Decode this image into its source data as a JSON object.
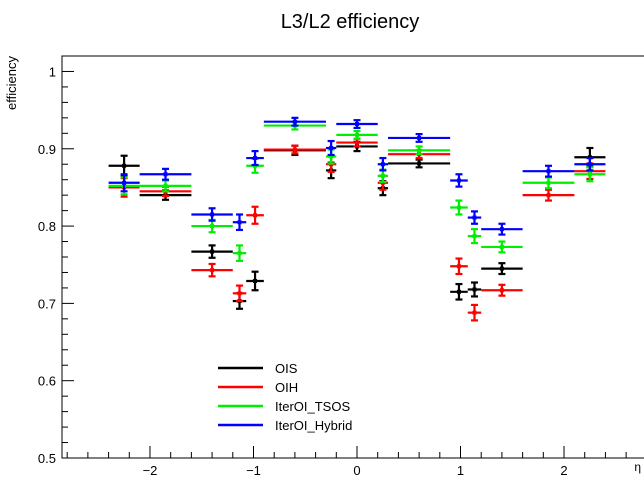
{
  "chart_data": {
    "type": "scatter",
    "title": "L3/L2 efficiency",
    "ylabel": "efficiency",
    "xlabel": "η",
    "xlim": [
      -2.85,
      2.85
    ],
    "ylim": [
      0.5,
      1.02
    ],
    "x_ticks": [
      -2,
      -1,
      0,
      1,
      2
    ],
    "x_tick_labels": [
      "−2",
      "−1",
      "0",
      "1",
      "2"
    ],
    "y_ticks": [
      0.5,
      0.6,
      0.7,
      0.8,
      0.9,
      1.0
    ],
    "y_tick_labels": [
      "0.5",
      "0.6",
      "0.7",
      "0.8",
      "0.9",
      "1"
    ],
    "grid": false,
    "legend_position": "bottom-left",
    "series": [
      {
        "name": "OIS",
        "color": "#000000",
        "points": [
          {
            "x": -2.25,
            "y": 0.878,
            "xlo": -2.4,
            "xhi": -2.1,
            "yerr": 0.013
          },
          {
            "x": -1.85,
            "y": 0.84,
            "xlo": -2.1,
            "xhi": -1.6,
            "yerr": 0.006
          },
          {
            "x": -1.4,
            "y": 0.767,
            "xlo": -1.6,
            "xhi": -1.2,
            "yerr": 0.008
          },
          {
            "x": -1.135,
            "y": 0.703,
            "xlo": -1.2,
            "xhi": -1.07,
            "yerr": 0.01
          },
          {
            "x": -0.985,
            "y": 0.729,
            "xlo": -1.07,
            "xhi": -0.9,
            "yerr": 0.012
          },
          {
            "x": -0.6,
            "y": 0.898,
            "xlo": -0.9,
            "xhi": -0.3,
            "yerr": 0.006
          },
          {
            "x": -0.25,
            "y": 0.872,
            "xlo": -0.3,
            "xhi": -0.2,
            "yerr": 0.01
          },
          {
            "x": 0.0,
            "y": 0.903,
            "xlo": -0.2,
            "xhi": 0.2,
            "yerr": 0.006
          },
          {
            "x": 0.25,
            "y": 0.849,
            "xlo": 0.2,
            "xhi": 0.3,
            "yerr": 0.009
          },
          {
            "x": 0.6,
            "y": 0.881,
            "xlo": 0.3,
            "xhi": 0.9,
            "yerr": 0.005
          },
          {
            "x": 0.985,
            "y": 0.715,
            "xlo": 0.9,
            "xhi": 1.07,
            "yerr": 0.01
          },
          {
            "x": 1.135,
            "y": 0.718,
            "xlo": 1.07,
            "xhi": 1.2,
            "yerr": 0.009
          },
          {
            "x": 1.4,
            "y": 0.745,
            "xlo": 1.2,
            "xhi": 1.6,
            "yerr": 0.007
          },
          {
            "x": 2.25,
            "y": 0.889,
            "xlo": 2.1,
            "xhi": 2.4,
            "yerr": 0.012
          }
        ]
      },
      {
        "name": "OIH",
        "color": "#ff0000",
        "points": [
          {
            "x": -2.25,
            "y": 0.85,
            "xlo": -2.4,
            "xhi": -2.1,
            "yerr": 0.012
          },
          {
            "x": -1.85,
            "y": 0.845,
            "xlo": -2.1,
            "xhi": -1.6,
            "yerr": 0.006
          },
          {
            "x": -1.4,
            "y": 0.743,
            "xlo": -1.6,
            "xhi": -1.2,
            "yerr": 0.008
          },
          {
            "x": -1.135,
            "y": 0.713,
            "xlo": -1.2,
            "xhi": -1.07,
            "yerr": 0.01
          },
          {
            "x": -0.985,
            "y": 0.814,
            "xlo": -1.07,
            "xhi": -0.9,
            "yerr": 0.011
          },
          {
            "x": -0.6,
            "y": 0.899,
            "xlo": -0.9,
            "xhi": -0.3,
            "yerr": 0.005
          },
          {
            "x": -0.25,
            "y": 0.88,
            "xlo": -0.3,
            "xhi": -0.2,
            "yerr": 0.01
          },
          {
            "x": 0.0,
            "y": 0.908,
            "xlo": -0.2,
            "xhi": 0.2,
            "yerr": 0.005
          },
          {
            "x": 0.25,
            "y": 0.856,
            "xlo": 0.2,
            "xhi": 0.3,
            "yerr": 0.009
          },
          {
            "x": 0.6,
            "y": 0.893,
            "xlo": 0.3,
            "xhi": 0.9,
            "yerr": 0.005
          },
          {
            "x": 0.985,
            "y": 0.748,
            "xlo": 0.9,
            "xhi": 1.07,
            "yerr": 0.01
          },
          {
            "x": 1.135,
            "y": 0.688,
            "xlo": 1.07,
            "xhi": 1.2,
            "yerr": 0.01
          },
          {
            "x": 1.4,
            "y": 0.717,
            "xlo": 1.2,
            "xhi": 1.6,
            "yerr": 0.007
          },
          {
            "x": 1.85,
            "y": 0.84,
            "xlo": 1.6,
            "xhi": 2.1,
            "yerr": 0.007
          },
          {
            "x": 2.25,
            "y": 0.871,
            "xlo": 2.1,
            "xhi": 2.4,
            "yerr": 0.01
          }
        ]
      },
      {
        "name": "IterOI_TSOS",
        "color": "#00ee00",
        "points": [
          {
            "x": -2.25,
            "y": 0.852,
            "xlo": -2.4,
            "xhi": -2.1,
            "yerr": 0.011
          },
          {
            "x": -1.85,
            "y": 0.852,
            "xlo": -2.1,
            "xhi": -1.6,
            "yerr": 0.007
          },
          {
            "x": -1.4,
            "y": 0.8,
            "xlo": -1.6,
            "xhi": -1.2,
            "yerr": 0.008
          },
          {
            "x": -1.135,
            "y": 0.765,
            "xlo": -1.2,
            "xhi": -1.07,
            "yerr": 0.01
          },
          {
            "x": -0.985,
            "y": 0.878,
            "xlo": -1.07,
            "xhi": -0.9,
            "yerr": 0.009
          },
          {
            "x": -0.6,
            "y": 0.93,
            "xlo": -0.9,
            "xhi": -0.3,
            "yerr": 0.005
          },
          {
            "x": -0.25,
            "y": 0.89,
            "xlo": -0.3,
            "xhi": -0.2,
            "yerr": 0.009
          },
          {
            "x": 0.0,
            "y": 0.918,
            "xlo": -0.2,
            "xhi": 0.2,
            "yerr": 0.005
          },
          {
            "x": 0.25,
            "y": 0.865,
            "xlo": 0.2,
            "xhi": 0.3,
            "yerr": 0.008
          },
          {
            "x": 0.6,
            "y": 0.898,
            "xlo": 0.3,
            "xhi": 0.9,
            "yerr": 0.005
          },
          {
            "x": 0.985,
            "y": 0.824,
            "xlo": 0.9,
            "xhi": 1.07,
            "yerr": 0.009
          },
          {
            "x": 1.135,
            "y": 0.787,
            "xlo": 1.07,
            "xhi": 1.2,
            "yerr": 0.009
          },
          {
            "x": 1.4,
            "y": 0.773,
            "xlo": 1.2,
            "xhi": 1.6,
            "yerr": 0.007
          },
          {
            "x": 1.85,
            "y": 0.856,
            "xlo": 1.6,
            "xhi": 2.1,
            "yerr": 0.007
          },
          {
            "x": 2.25,
            "y": 0.867,
            "xlo": 2.1,
            "xhi": 2.4,
            "yerr": 0.009
          }
        ]
      },
      {
        "name": "IterOI_Hybrid",
        "color": "#0000ff",
        "points": [
          {
            "x": -2.25,
            "y": 0.856,
            "xlo": -2.4,
            "xhi": -2.1,
            "yerr": 0.011
          },
          {
            "x": -1.85,
            "y": 0.867,
            "xlo": -2.1,
            "xhi": -1.6,
            "yerr": 0.007
          },
          {
            "x": -1.4,
            "y": 0.815,
            "xlo": -1.6,
            "xhi": -1.2,
            "yerr": 0.008
          },
          {
            "x": -1.135,
            "y": 0.805,
            "xlo": -1.2,
            "xhi": -1.07,
            "yerr": 0.01
          },
          {
            "x": -0.985,
            "y": 0.888,
            "xlo": -1.07,
            "xhi": -0.9,
            "yerr": 0.009
          },
          {
            "x": -0.6,
            "y": 0.935,
            "xlo": -0.9,
            "xhi": -0.3,
            "yerr": 0.005
          },
          {
            "x": -0.25,
            "y": 0.901,
            "xlo": -0.3,
            "xhi": -0.2,
            "yerr": 0.009
          },
          {
            "x": 0.0,
            "y": 0.932,
            "xlo": -0.2,
            "xhi": 0.2,
            "yerr": 0.005
          },
          {
            "x": 0.25,
            "y": 0.88,
            "xlo": 0.2,
            "xhi": 0.3,
            "yerr": 0.008
          },
          {
            "x": 0.6,
            "y": 0.914,
            "xlo": 0.3,
            "xhi": 0.9,
            "yerr": 0.005
          },
          {
            "x": 0.985,
            "y": 0.859,
            "xlo": 0.9,
            "xhi": 1.07,
            "yerr": 0.008
          },
          {
            "x": 1.135,
            "y": 0.811,
            "xlo": 1.07,
            "xhi": 1.2,
            "yerr": 0.008
          },
          {
            "x": 1.4,
            "y": 0.796,
            "xlo": 1.2,
            "xhi": 1.6,
            "yerr": 0.007
          },
          {
            "x": 1.85,
            "y": 0.871,
            "xlo": 1.6,
            "xhi": 2.1,
            "yerr": 0.007
          },
          {
            "x": 2.25,
            "y": 0.88,
            "xlo": 2.1,
            "xhi": 2.4,
            "yerr": 0.008
          }
        ]
      }
    ]
  }
}
